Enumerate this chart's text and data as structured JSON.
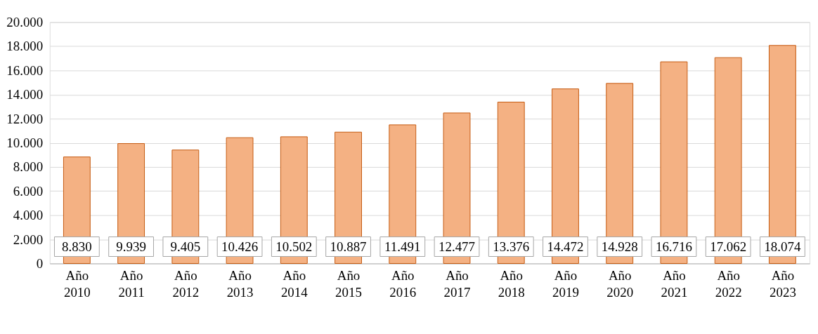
{
  "chart_data": {
    "type": "bar",
    "categories": [
      "Año 2010",
      "Año 2011",
      "Año 2012",
      "Año 2013",
      "Año 2014",
      "Año 2015",
      "Año 2016",
      "Año 2017",
      "Año 2018",
      "Año 2019",
      "Año 2020",
      "Año 2021",
      "Año 2022",
      "Año 2023"
    ],
    "series": [
      {
        "color": "#f4b183",
        "values": [
          8830,
          9939,
          9405,
          10426,
          10502,
          10887,
          11491,
          12477,
          13376,
          14472,
          14928,
          16716,
          17062,
          18074
        ]
      }
    ],
    "value_labels": [
      "8.830",
      "9.939",
      "9.405",
      "10.426",
      "10.502",
      "10.887",
      "11.491",
      "12.477",
      "13.376",
      "14.472",
      "14.928",
      "16.716",
      "17.062",
      "18.074"
    ],
    "ylim": [
      0,
      20000
    ],
    "yticks": [
      0,
      {
        "value": 2000,
        "label": "2.000"
      },
      {
        "value": 4000,
        "label": "4.000"
      },
      {
        "value": 6000,
        "label": "6.000"
      },
      {
        "value": 8000,
        "label": "8.000"
      },
      {
        "value": 10000,
        "label": "10.000"
      },
      {
        "value": 12000,
        "label": "12.000"
      },
      {
        "value": 14000,
        "label": "14.000"
      },
      {
        "value": 16000,
        "label": "16.000"
      },
      {
        "value": 18000,
        "label": "18.000"
      },
      {
        "value": 20000,
        "label": "20.000"
      }
    ],
    "grid": "y"
  }
}
